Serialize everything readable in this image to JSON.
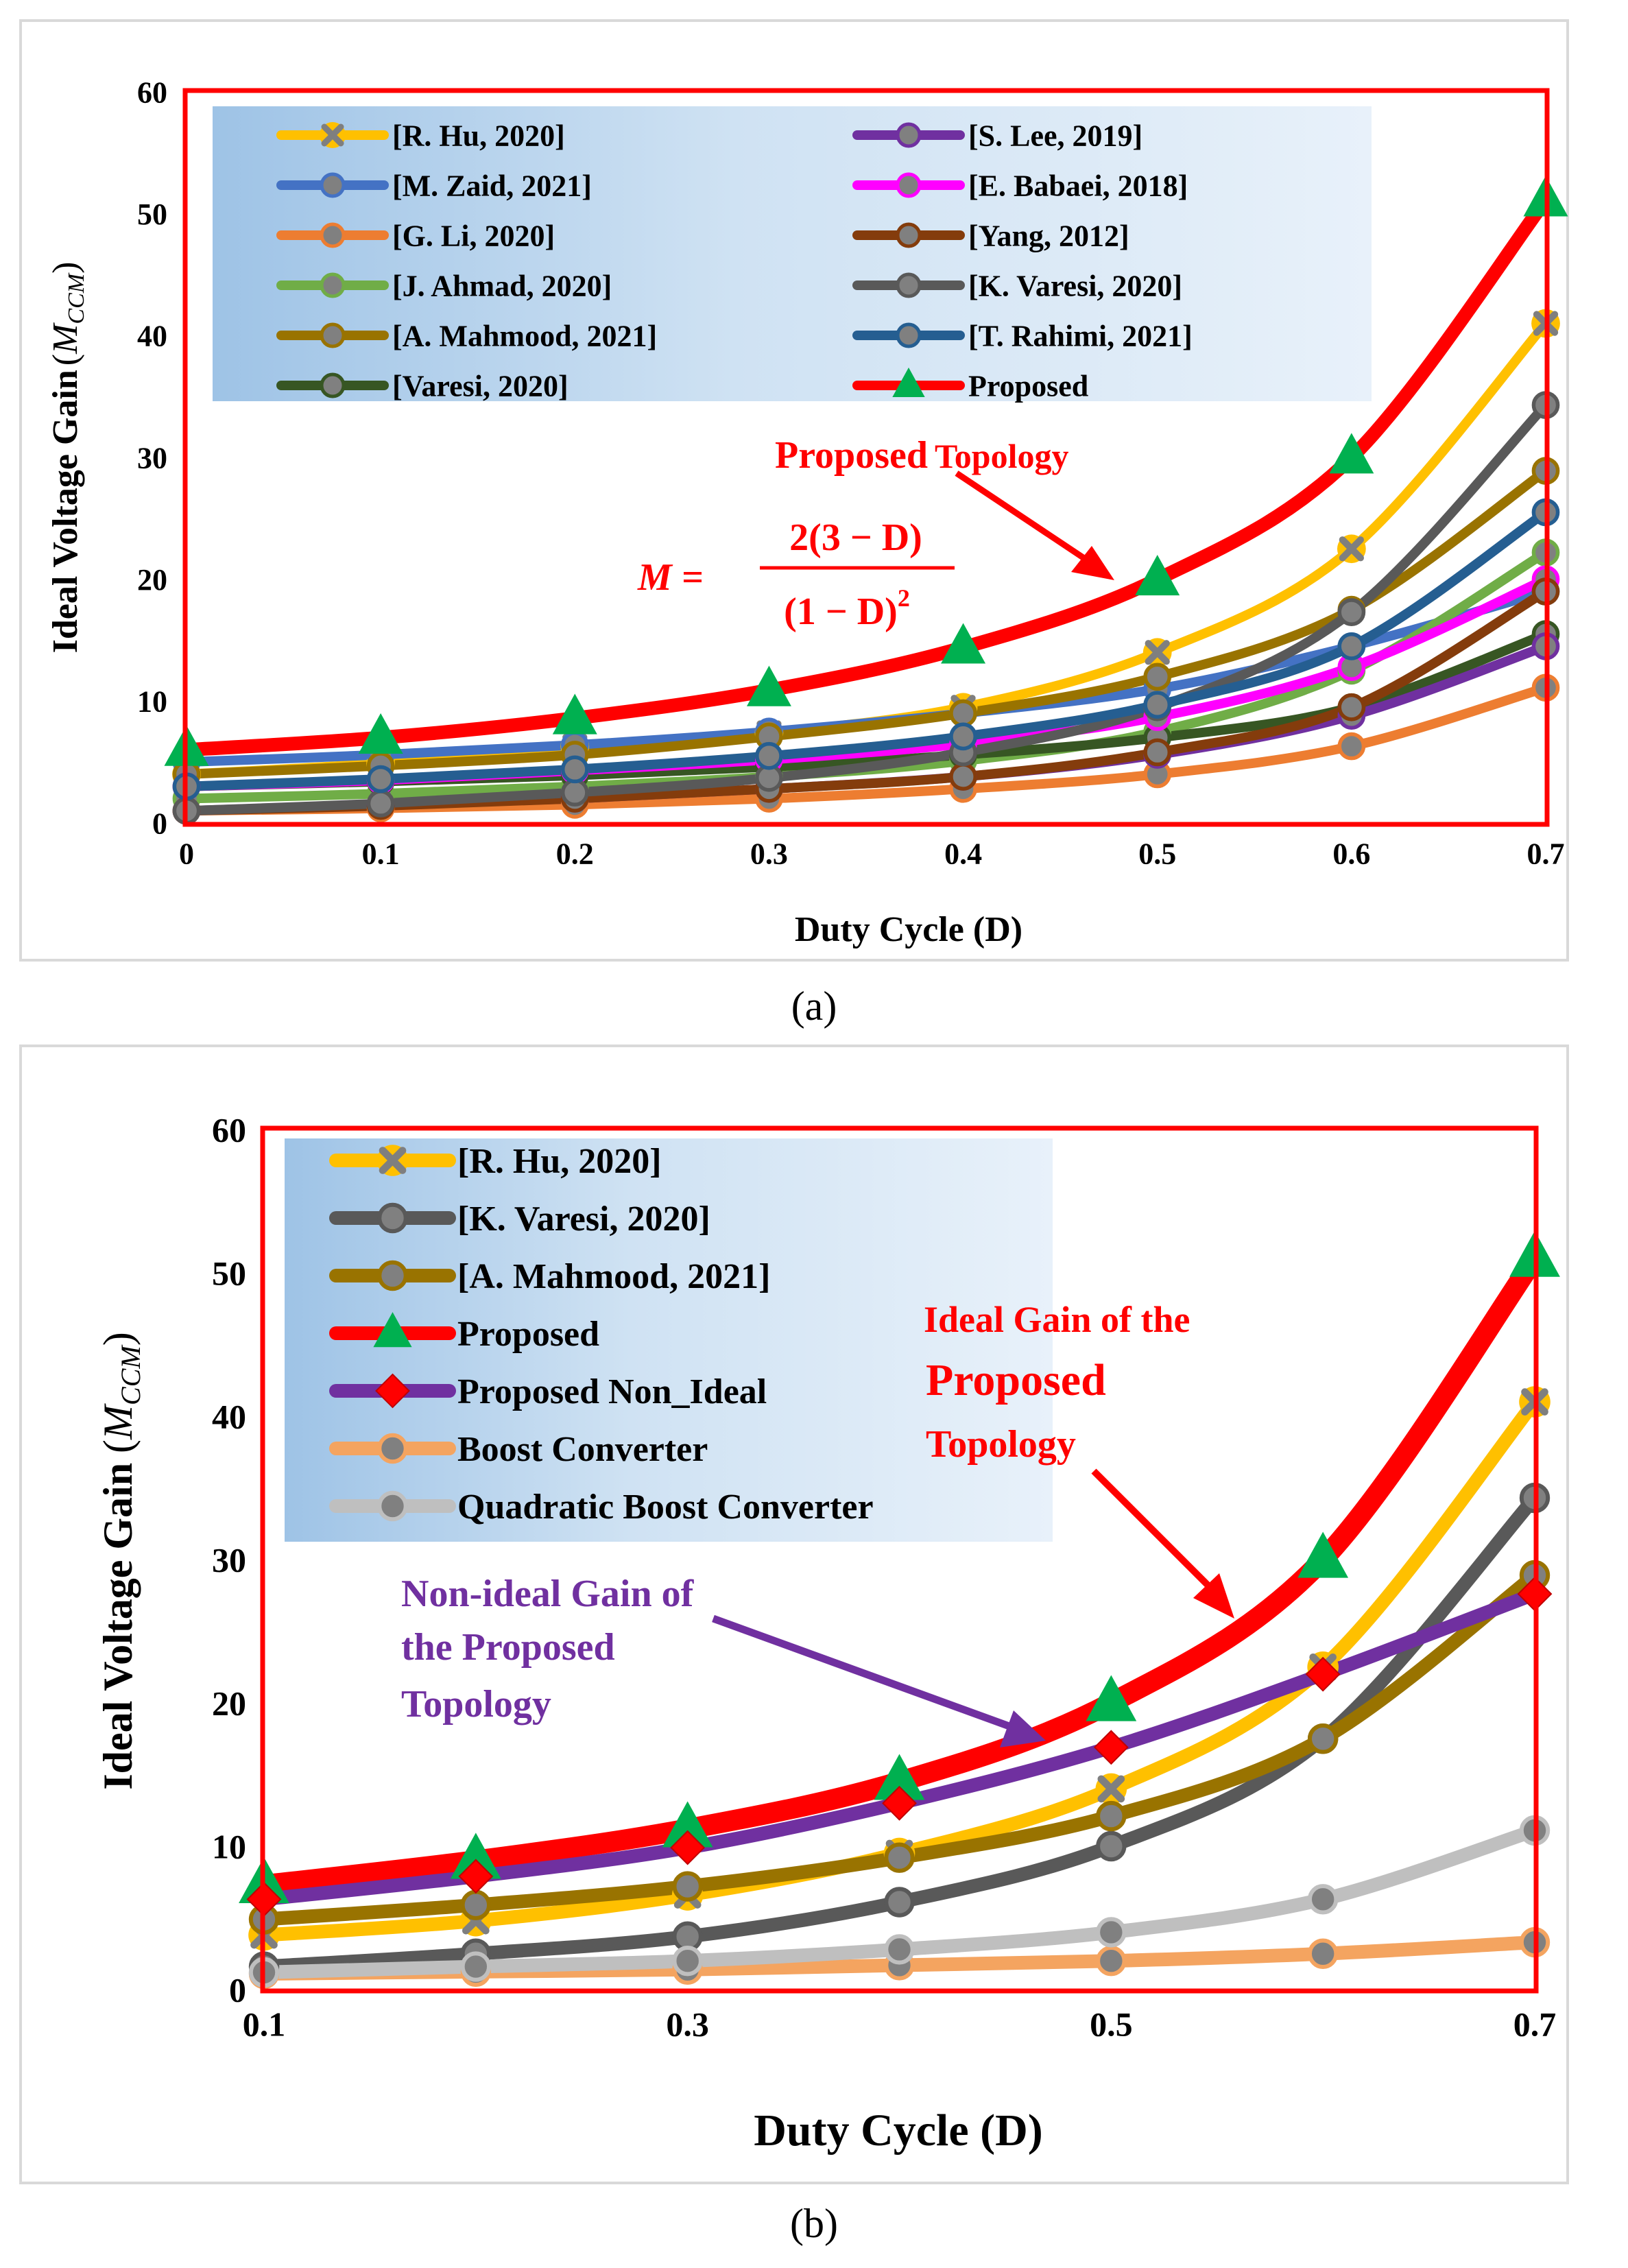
{
  "chart_data": [
    {
      "type": "line",
      "panel_label": "(a)",
      "title": "",
      "xlabel": "Duty Cycle (D)",
      "ylabel": "Ideal Voltage Gain",
      "ylabel_symbol": "M",
      "ylabel_subscript": "CCM",
      "xlim": [
        0,
        0.7
      ],
      "ylim": [
        0,
        60
      ],
      "x_ticks": [
        "0",
        "0.1",
        "0.2",
        "0.3",
        "0.4",
        "0.5",
        "0.6",
        "0.7"
      ],
      "y_ticks": [
        "0",
        "10",
        "20",
        "30",
        "40",
        "50",
        "60"
      ],
      "legend_location": "top-left",
      "x": [
        0,
        0.1,
        0.2,
        0.3,
        0.4,
        0.5,
        0.6,
        0.7
      ],
      "series": [
        {
          "name": "[R. Hu, 2020]",
          "color": "#FFC000",
          "marker": "x",
          "values": [
            4.0,
            4.9,
            6.3,
            7.4,
            9.5,
            14.0,
            22.5,
            41.0
          ]
        },
        {
          "name": "[M. Zaid, 2021]",
          "color": "#4472C4",
          "marker": "o",
          "values": [
            5.0,
            5.6,
            6.4,
            7.5,
            9.0,
            11.0,
            14.5,
            19.0
          ]
        },
        {
          "name": "[G. Li, 2020]",
          "color": "#ED7D31",
          "marker": "o",
          "values": [
            1.0,
            1.2,
            1.5,
            2.0,
            2.8,
            4.0,
            6.3,
            11.1
          ]
        },
        {
          "name": "[J. Ahmad, 2020]",
          "color": "#70AD47",
          "marker": "o",
          "values": [
            2.0,
            2.4,
            3.0,
            3.8,
            5.1,
            7.5,
            12.5,
            22.2
          ]
        },
        {
          "name": "[A. Mahmood, 2021]",
          "color": "#997300",
          "marker": "o",
          "values": [
            4.0,
            4.7,
            5.6,
            7.1,
            9.0,
            12.0,
            17.5,
            28.9
          ]
        },
        {
          "name": "[Varesi, 2020]",
          "color": "#375623",
          "marker": "o",
          "values": [
            3.0,
            3.4,
            3.9,
            4.6,
            5.6,
            7.0,
            9.5,
            15.5
          ]
        },
        {
          "name": "[S. Lee, 2019]",
          "color": "#7030A0",
          "marker": "o",
          "values": [
            1.0,
            1.5,
            2.0,
            2.8,
            3.8,
            5.6,
            8.8,
            14.5
          ]
        },
        {
          "name": "[E. Babaei, 2018]",
          "color": "#FF00FF",
          "marker": "o",
          "values": [
            3.0,
            3.5,
            4.3,
            5.2,
            6.5,
            8.7,
            12.8,
            20.0
          ]
        },
        {
          "name": "[Yang, 2012]",
          "color": "#843C0C",
          "marker": "o",
          "values": [
            1.0,
            1.4,
            2.0,
            2.8,
            3.8,
            5.8,
            9.5,
            19.0
          ]
        },
        {
          "name": "[K. Varesi, 2020]",
          "color": "#595959",
          "marker": "o",
          "values": [
            1.0,
            1.6,
            2.5,
            3.7,
            5.8,
            9.5,
            17.3,
            34.3
          ]
        },
        {
          "name": "[T. Rahimi, 2021]",
          "color": "#255E91",
          "marker": "o",
          "values": [
            3.0,
            3.6,
            4.4,
            5.5,
            7.1,
            9.7,
            14.5,
            25.5
          ]
        },
        {
          "name": "Proposed",
          "color": "#FF0000",
          "marker": "^",
          "values": [
            6.0,
            7.0,
            8.6,
            10.9,
            14.4,
            20.0,
            30.0,
            51.1
          ]
        }
      ],
      "annotations": [
        {
          "text_parts": [
            "Proposed",
            "Topology"
          ],
          "color": "#FF0000",
          "arrow_to_x": 0.48,
          "arrow_to_y": 19
        },
        {
          "formula": {
            "lhs": "M =",
            "numerator": "2(3 − D)",
            "denominator": "(1 − D)",
            "exponent": "2"
          },
          "color": "#FF0000"
        }
      ]
    },
    {
      "type": "line",
      "panel_label": "(b)",
      "title": "",
      "xlabel": "Duty Cycle (D)",
      "ylabel": "Ideal Voltage Gain",
      "ylabel_symbol": "M",
      "ylabel_subscript": "CCM",
      "xlim": [
        0.1,
        0.7
      ],
      "ylim": [
        0,
        60
      ],
      "x_ticks": [
        "0.1",
        "0.3",
        "0.5",
        "0.7"
      ],
      "y_ticks": [
        "0",
        "10",
        "20",
        "30",
        "40",
        "50",
        "60"
      ],
      "legend_location": "top-left",
      "x": [
        0.1,
        0.2,
        0.3,
        0.4,
        0.5,
        0.6,
        0.7
      ],
      "series": [
        {
          "name": "[R. Hu, 2020]",
          "color": "#FFC000",
          "marker": "x",
          "values": [
            3.8,
            4.8,
            6.6,
            9.5,
            14.0,
            22.5,
            41.0
          ]
        },
        {
          "name": "[K. Varesi, 2020]",
          "color": "#595959",
          "marker": "o",
          "values": [
            1.6,
            2.5,
            3.7,
            6.1,
            10.0,
            17.5,
            34.3
          ]
        },
        {
          "name": "[A. Mahmood, 2021]",
          "color": "#997300",
          "marker": "o",
          "values": [
            4.9,
            5.9,
            7.2,
            9.2,
            12.1,
            17.5,
            28.9
          ]
        },
        {
          "name": "Proposed",
          "color": "#FF0000",
          "marker": "^",
          "values": [
            7.3,
            9.0,
            11.2,
            14.5,
            20.0,
            30.0,
            51.0
          ]
        },
        {
          "name": "Proposed Non_Ideal",
          "color": "#7030A0",
          "marker": "d",
          "values": [
            6.3,
            7.9,
            9.9,
            13.0,
            16.9,
            22.0,
            27.6
          ]
        },
        {
          "name": "Boost Converter",
          "color": "#F4A460",
          "marker": "o",
          "values": [
            1.1,
            1.25,
            1.4,
            1.7,
            2.0,
            2.5,
            3.3
          ]
        },
        {
          "name": "Quadratic Boost Converter",
          "color": "#BFBFBF",
          "marker": "o",
          "values": [
            1.2,
            1.6,
            2.0,
            2.8,
            4.0,
            6.3,
            11.1
          ]
        }
      ],
      "annotations": [
        {
          "text_lines": [
            "Ideal Gain of the",
            "Proposed",
            "Topology"
          ],
          "color": "#FF0000",
          "arrow_to_x": 0.55,
          "arrow_to_y": 25
        },
        {
          "text_lines": [
            "Non-ideal Gain of",
            "the Proposed",
            "Topology"
          ],
          "color": "#7030A0",
          "arrow_to_x": 0.48,
          "arrow_to_y": 16.5
        }
      ]
    }
  ]
}
